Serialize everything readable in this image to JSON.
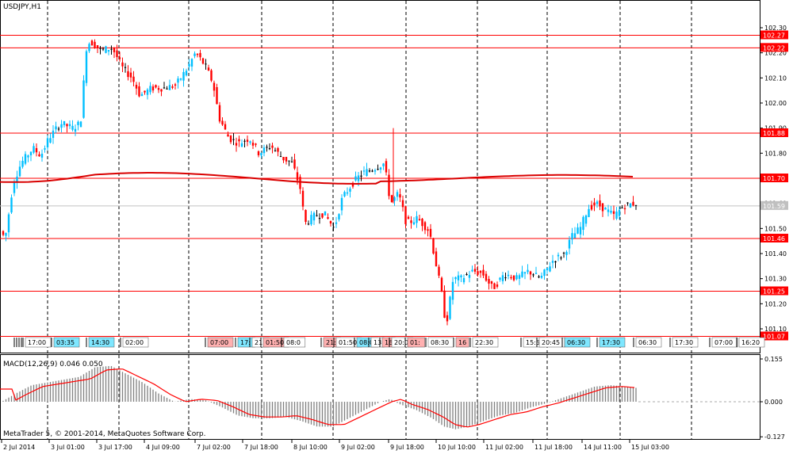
{
  "window": {
    "title": "USDJPY,H1",
    "indicator_label": "MACD(12,26,9) 0.046 0.050",
    "copyright": "MetaTrader 5, © 2001-2014, MetaQuotes Software Corp."
  },
  "colors": {
    "bull": "#00bfff",
    "bear": "#ff0000",
    "doji": "#000000",
    "level": "#ff0000",
    "ma": "#d90000",
    "current": "#c0c0c0",
    "grid": "#000000",
    "macd_hist": "#808080",
    "signal": "#ff0000"
  },
  "price_axis": {
    "ticks": [
      "102.30",
      "102.20",
      "102.10",
      "102.00",
      "101.90",
      "101.80",
      "101.70",
      "101.60",
      "101.50",
      "101.40",
      "101.30",
      "101.20",
      "101.10"
    ],
    "min": 101.07,
    "max": 102.3
  },
  "level_lines": [
    {
      "value": 102.27,
      "label": "102.27"
    },
    {
      "value": 102.22,
      "label": "102.22"
    },
    {
      "value": 101.88,
      "label": "101.88"
    },
    {
      "value": 101.7,
      "label": "101.70"
    },
    {
      "value": 101.46,
      "label": "101.46"
    },
    {
      "value": 101.25,
      "label": "101.25"
    },
    {
      "value": 101.07,
      "label": "101.07"
    }
  ],
  "current_price": {
    "value": 101.59,
    "label": "101.59"
  },
  "macd_axis": {
    "ticks": [
      "0.155",
      "0.000",
      "-0.127"
    ],
    "min": -0.127,
    "max": 0.155
  },
  "time_axis": [
    "2 Jul 2014",
    "3 Jul 01:00",
    "3 Jul 17:00",
    "4 Jul 09:00",
    "7 Jul 02:00",
    "7 Jul 18:00",
    "8 Jul 10:00",
    "9 Jul 02:00",
    "9 Jul 18:00",
    "10 Jul 10:00",
    "11 Jul 02:00",
    "11 Jul 18:00",
    "14 Jul 11:00",
    "15 Jul 03:00"
  ],
  "event_tags": [
    {
      "text": "17:00",
      "color": "white"
    },
    {
      "text": "03:35",
      "color": "cyan"
    },
    {
      "text": "14:30",
      "color": "cyan"
    },
    {
      "text": "02:00",
      "color": "white"
    },
    {
      "text": "07:00",
      "color": "pink"
    },
    {
      "text": "17:",
      "color": "cyan"
    },
    {
      "text": "21:",
      "color": "white"
    },
    {
      "text": "01:50",
      "color": "pink"
    },
    {
      "text": "08:0",
      "color": "white"
    },
    {
      "text": "21:",
      "color": "pink"
    },
    {
      "text": "01:50",
      "color": "white"
    },
    {
      "text": "08:0",
      "color": "cyan"
    },
    {
      "text": "13",
      "color": "white"
    },
    {
      "text": "16",
      "color": "pink"
    },
    {
      "text": "20:0",
      "color": "white"
    },
    {
      "text": "01:",
      "color": "pink"
    },
    {
      "text": "08:30",
      "color": "white"
    },
    {
      "text": "16",
      "color": "pink"
    },
    {
      "text": "22:30",
      "color": "white"
    },
    {
      "text": "15:5",
      "color": "white"
    },
    {
      "text": "20:45",
      "color": "white"
    },
    {
      "text": "06:30",
      "color": "cyan"
    },
    {
      "text": "17:30",
      "color": "cyan"
    },
    {
      "text": "06:30",
      "color": "white"
    },
    {
      "text": "17:30",
      "color": "white"
    },
    {
      "text": "07:00",
      "color": "white"
    },
    {
      "text": "16:20",
      "color": "white"
    }
  ]
}
